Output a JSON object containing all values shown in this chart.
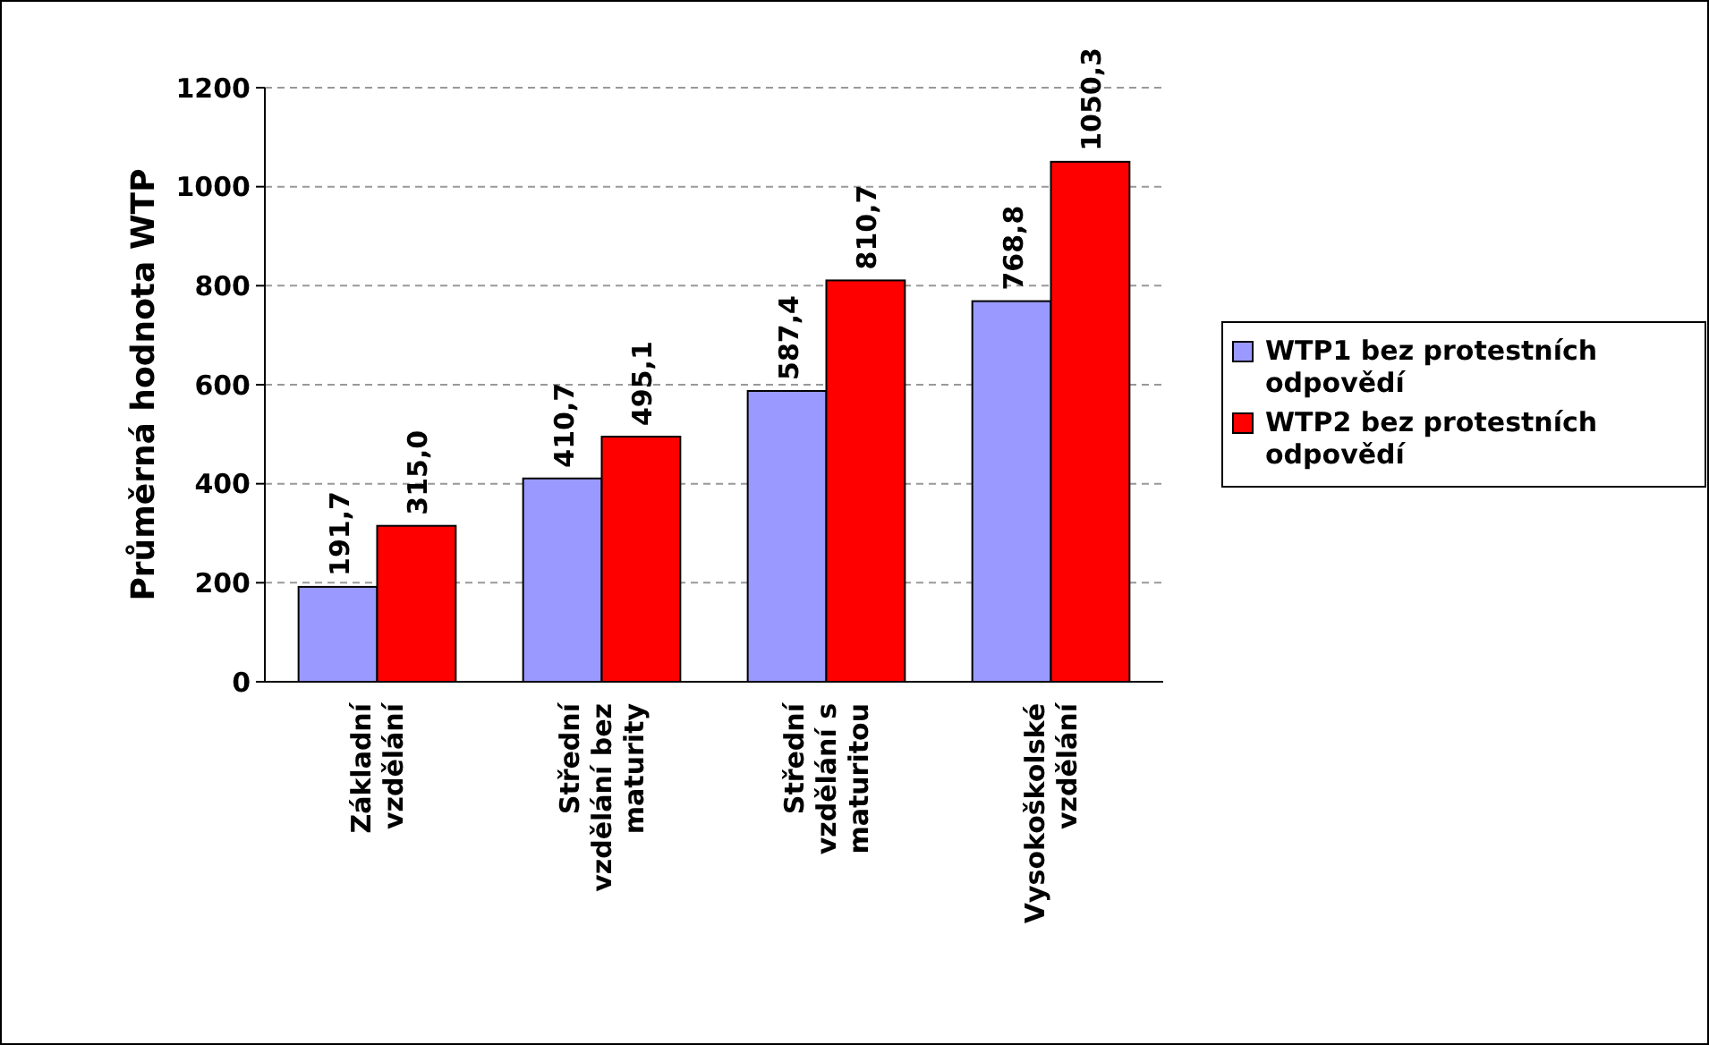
{
  "chart_data": {
    "type": "bar",
    "ylabel": "Průměrná hodnota WTP",
    "categories": [
      "Základní vzdělání",
      "Střední vzdělání bez maturity",
      "Střední vzdělání s maturitou",
      "Vysokoškolské vzdělání"
    ],
    "series": [
      {
        "name": "WTP1 bez protestních odpovědí",
        "color": "#9999ff",
        "values": [
          191.7,
          410.7,
          587.4,
          768.8
        ],
        "value_labels": [
          "191,7",
          "410,7",
          "587,4",
          "768,8"
        ]
      },
      {
        "name": "WTP2 bez protestních odpovědí",
        "color": "#ff0000",
        "values": [
          315.0,
          495.1,
          810.7,
          1050.3
        ],
        "value_labels": [
          "315,0",
          "495,1",
          "810,7",
          "1050,3"
        ]
      }
    ],
    "ylim": [
      0,
      1200
    ],
    "yticks": [
      0,
      200,
      400,
      600,
      800,
      1000,
      1200
    ],
    "grid": "y",
    "legend": "right"
  }
}
